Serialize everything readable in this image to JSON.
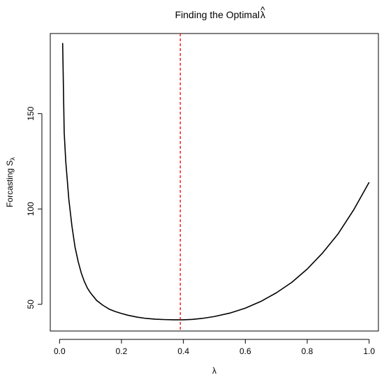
{
  "chart_data": {
    "type": "line",
    "title": "Finding the Optimal",
    "title_symbol": "λ",
    "title_symbol_accent": "^",
    "xlabel": "λ",
    "ylabel": "Forcasting S",
    "ylabel_subscript": "λ",
    "xlim": [
      -0.03,
      1.03
    ],
    "ylim": [
      36,
      192
    ],
    "x_ticks": [
      0.0,
      0.2,
      0.4,
      0.6,
      0.8,
      1.0
    ],
    "x_tick_labels": [
      "0.0",
      "0.2",
      "0.4",
      "0.6",
      "0.8",
      "1.0"
    ],
    "y_ticks": [
      50,
      100,
      150
    ],
    "y_tick_labels": [
      "50",
      "100",
      "150"
    ],
    "grid": false,
    "series": [
      {
        "color": "#000000",
        "x": [
          0.01,
          0.015,
          0.02,
          0.03,
          0.04,
          0.05,
          0.06,
          0.07,
          0.08,
          0.09,
          0.1,
          0.12,
          0.14,
          0.16,
          0.18,
          0.2,
          0.22,
          0.25,
          0.28,
          0.31,
          0.34,
          0.37,
          0.4,
          0.43,
          0.46,
          0.5,
          0.55,
          0.6,
          0.65,
          0.7,
          0.75,
          0.8,
          0.85,
          0.9,
          0.95,
          1.0
        ],
        "y": [
          187,
          140,
          125,
          105,
          91,
          80,
          72.5,
          66.5,
          62,
          58.5,
          56,
          52,
          49.5,
          47.5,
          46.2,
          45.2,
          44.3,
          43.3,
          42.6,
          42.2,
          42.0,
          41.9,
          41.9,
          42.1,
          42.6,
          43.6,
          45.4,
          48.0,
          51.5,
          56.0,
          61.5,
          68.5,
          77.0,
          87.0,
          99.5,
          114
        ]
      }
    ],
    "vline": {
      "x": 0.39,
      "color": "#ff0000",
      "style": "dashed"
    }
  }
}
